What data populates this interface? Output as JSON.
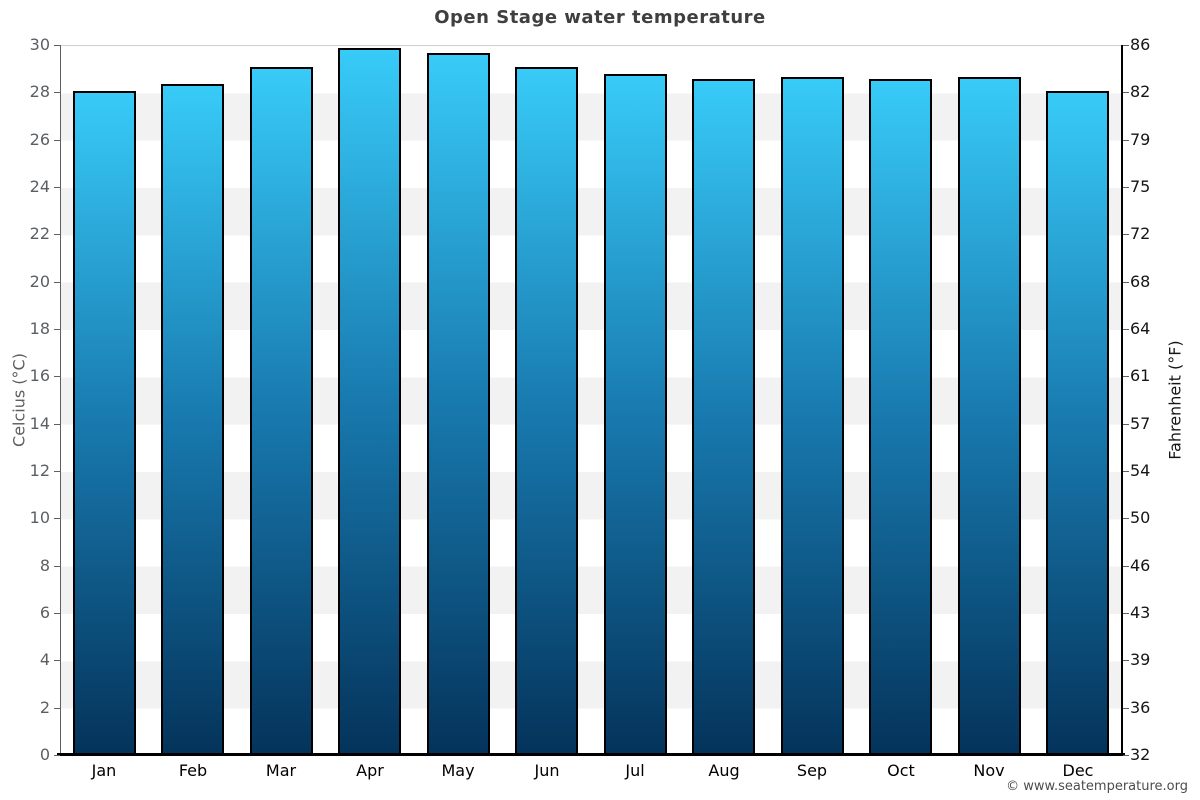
{
  "title": "Open Stage water temperature",
  "axes": {
    "left_title": "Celcius (°C)",
    "right_title": "Fahrenheit (°F)",
    "celsius_ticks": [
      "30",
      "28",
      "26",
      "24",
      "22",
      "20",
      "18",
      "16",
      "14",
      "12",
      "10",
      "8",
      "6",
      "4",
      "2",
      "0"
    ],
    "fahrenheit_ticks": [
      "86",
      "82",
      "79",
      "75",
      "72",
      "68",
      "64",
      "61",
      "57",
      "54",
      "50",
      "46",
      "43",
      "39",
      "36",
      "32"
    ]
  },
  "chart_data": {
    "type": "bar",
    "title": "Open Stage water temperature",
    "categories": [
      "Jan",
      "Feb",
      "Mar",
      "Apr",
      "May",
      "Jun",
      "Jul",
      "Aug",
      "Sep",
      "Oct",
      "Nov",
      "Dec"
    ],
    "values": [
      28.1,
      28.4,
      29.1,
      29.9,
      29.7,
      29.1,
      28.8,
      28.6,
      28.7,
      28.6,
      28.7,
      28.1
    ],
    "unit": "°C",
    "xlabel": "",
    "ylabel_left": "Celcius (°C)",
    "ylabel_right": "Fahrenheit (°F)",
    "ylim": [
      0,
      30
    ],
    "grid_band_step_c": 2,
    "legend": "none",
    "colors": {
      "bar_gradient_top": "#38cbf8",
      "bar_gradient_mid": "#1879ae",
      "bar_gradient_bottom": "#04335a",
      "bar_border": "#000000",
      "band_light": "#ffffff",
      "band_gray": "#f2f2f2",
      "title_text": "#3f3f3f",
      "left_axis_text": "#5c5f62",
      "right_axis_text": "#161616"
    }
  },
  "footer": {
    "copyright": "© www.seatemperature.org"
  }
}
